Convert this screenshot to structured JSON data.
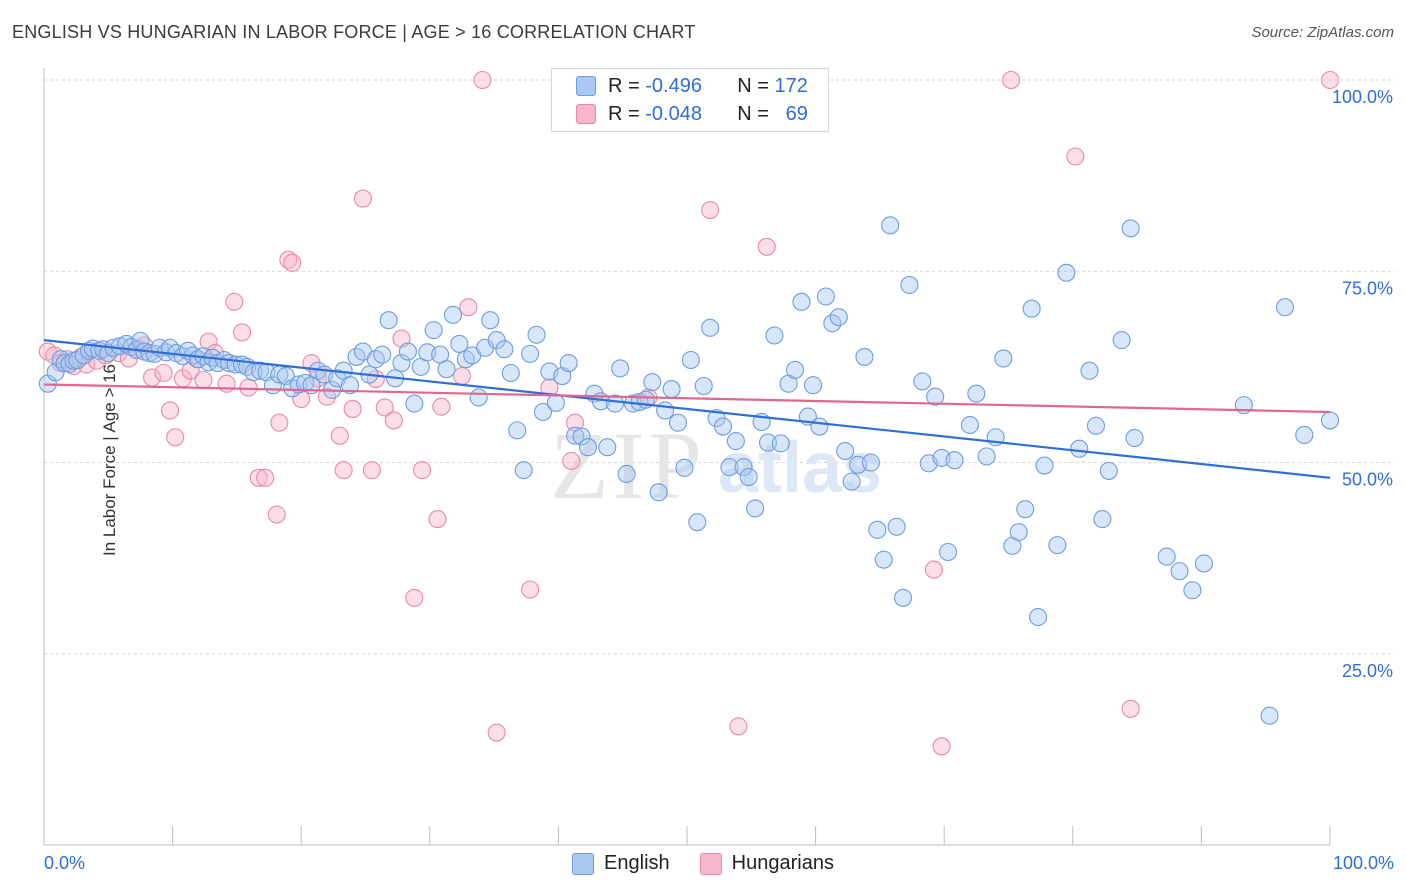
{
  "header": {
    "title": "ENGLISH VS HUNGARIAN IN LABOR FORCE | AGE > 16 CORRELATION CHART",
    "source": "Source: ZipAtlas.com"
  },
  "legend": {
    "rows": [
      {
        "r_label": "R =",
        "r_value": "-0.496",
        "n_label": "N =",
        "n_value": "172",
        "color": "#a9c8f2",
        "border": "#6f9de0"
      },
      {
        "r_label": "R =",
        "r_value": "-0.048",
        "n_label": "N =",
        "n_value": "69",
        "color": "#f7b6c9",
        "border": "#e98aa8"
      }
    ]
  },
  "bottom_legend": [
    "English",
    "Hungarians"
  ],
  "watermark": {
    "zip": "ZIP",
    "atlas": "atlas"
  },
  "chart_data": {
    "type": "scatter",
    "ylabel": "In Labor Force | Age > 16",
    "xlim": [
      0,
      100
    ],
    "ylim": [
      0,
      100
    ],
    "x_tick_labels": [
      "0.0%",
      "100.0%"
    ],
    "y_tick_labels": [
      {
        "v": 100,
        "label": "100.0%"
      },
      {
        "v": 75,
        "label": "75.0%"
      },
      {
        "v": 50,
        "label": "50.0%"
      },
      {
        "v": 25,
        "label": "25.0%"
      }
    ],
    "grid": true,
    "series": [
      {
        "name": "English",
        "color": "#6f9de0",
        "fill": "rgba(169,200,242,0.45)",
        "line_color": "#2f6fd6",
        "trend": {
          "x0": 0,
          "y0": 66.0,
          "x1": 100,
          "y1": 48.0
        },
        "points": [
          [
            0.3,
            60.3
          ],
          [
            0.9,
            61.8
          ],
          [
            1.3,
            63.5
          ],
          [
            1.6,
            63.0
          ],
          [
            2.0,
            62.9
          ],
          [
            2.3,
            63.3
          ],
          [
            2.6,
            63.4
          ],
          [
            3.1,
            64.0
          ],
          [
            3.5,
            64.6
          ],
          [
            3.8,
            64.9
          ],
          [
            4.3,
            64.6
          ],
          [
            4.6,
            64.8
          ],
          [
            5.0,
            64.3
          ],
          [
            5.4,
            65.0
          ],
          [
            5.9,
            65.2
          ],
          [
            6.4,
            65.5
          ],
          [
            6.8,
            65.1
          ],
          [
            7.2,
            64.7
          ],
          [
            7.5,
            65.9
          ],
          [
            7.8,
            64.5
          ],
          [
            8.2,
            64.3
          ],
          [
            8.6,
            64.2
          ],
          [
            9.0,
            65.0
          ],
          [
            9.5,
            64.4
          ],
          [
            9.8,
            65.0
          ],
          [
            10.3,
            64.3
          ],
          [
            10.8,
            63.9
          ],
          [
            11.2,
            64.6
          ],
          [
            11.6,
            64.0
          ],
          [
            12.0,
            63.5
          ],
          [
            12.4,
            63.9
          ],
          [
            12.8,
            63.1
          ],
          [
            13.1,
            63.7
          ],
          [
            13.5,
            63.0
          ],
          [
            14.0,
            63.4
          ],
          [
            14.4,
            63.0
          ],
          [
            14.9,
            62.8
          ],
          [
            15.4,
            62.8
          ],
          [
            15.8,
            62.5
          ],
          [
            16.3,
            61.8
          ],
          [
            16.8,
            62.0
          ],
          [
            17.3,
            61.8
          ],
          [
            17.8,
            60.1
          ],
          [
            18.3,
            61.5
          ],
          [
            18.8,
            61.3
          ],
          [
            19.3,
            59.7
          ],
          [
            19.8,
            60.2
          ],
          [
            20.3,
            60.4
          ],
          [
            20.8,
            60.1
          ],
          [
            21.3,
            62.0
          ],
          [
            21.8,
            61.5
          ],
          [
            22.4,
            59.5
          ],
          [
            22.8,
            61.0
          ],
          [
            23.3,
            62.0
          ],
          [
            23.8,
            60.1
          ],
          [
            24.3,
            63.8
          ],
          [
            24.8,
            64.5
          ],
          [
            25.3,
            61.5
          ],
          [
            25.8,
            63.5
          ],
          [
            26.3,
            64.1
          ],
          [
            26.8,
            68.6
          ],
          [
            27.3,
            61.0
          ],
          [
            27.8,
            63.0
          ],
          [
            28.3,
            64.5
          ],
          [
            28.8,
            57.7
          ],
          [
            29.3,
            62.5
          ],
          [
            29.8,
            64.4
          ],
          [
            30.3,
            67.3
          ],
          [
            30.8,
            64.1
          ],
          [
            31.3,
            62.2
          ],
          [
            31.8,
            69.3
          ],
          [
            32.3,
            65.5
          ],
          [
            32.8,
            63.5
          ],
          [
            33.3,
            64.0
          ],
          [
            33.8,
            58.5
          ],
          [
            34.3,
            65.0
          ],
          [
            34.7,
            68.6
          ],
          [
            35.2,
            66.0
          ],
          [
            35.8,
            64.8
          ],
          [
            36.3,
            61.7
          ],
          [
            36.8,
            54.2
          ],
          [
            37.3,
            49.0
          ],
          [
            37.8,
            64.2
          ],
          [
            38.3,
            66.7
          ],
          [
            38.8,
            56.6
          ],
          [
            39.3,
            61.9
          ],
          [
            39.8,
            57.8
          ],
          [
            40.3,
            61.3
          ],
          [
            40.8,
            63.0
          ],
          [
            41.3,
            53.5
          ],
          [
            41.8,
            53.4
          ],
          [
            42.3,
            52.0
          ],
          [
            42.8,
            59.0
          ],
          [
            43.3,
            58.0
          ],
          [
            43.8,
            52.0
          ],
          [
            44.4,
            57.7
          ],
          [
            44.8,
            62.3
          ],
          [
            45.3,
            48.5
          ],
          [
            45.8,
            57.7
          ],
          [
            46.3,
            57.9
          ],
          [
            46.8,
            58.2
          ],
          [
            47.3,
            60.5
          ],
          [
            47.8,
            46.1
          ],
          [
            48.3,
            56.8
          ],
          [
            48.8,
            59.6
          ],
          [
            49.3,
            55.2
          ],
          [
            49.8,
            49.3
          ],
          [
            50.3,
            63.4
          ],
          [
            50.8,
            42.2
          ],
          [
            51.3,
            60.0
          ],
          [
            51.8,
            67.6
          ],
          [
            52.3,
            55.8
          ],
          [
            52.8,
            54.7
          ],
          [
            53.3,
            49.4
          ],
          [
            53.8,
            52.8
          ],
          [
            54.4,
            49.4
          ],
          [
            54.8,
            48.1
          ],
          [
            55.3,
            44.0
          ],
          [
            55.8,
            55.3
          ],
          [
            56.3,
            52.6
          ],
          [
            56.8,
            66.6
          ],
          [
            57.3,
            52.5
          ],
          [
            57.9,
            60.3
          ],
          [
            58.4,
            62.1
          ],
          [
            58.9,
            71.0
          ],
          [
            59.4,
            56.0
          ],
          [
            59.8,
            60.1
          ],
          [
            60.3,
            54.7
          ],
          [
            60.8,
            71.7
          ],
          [
            61.3,
            68.2
          ],
          [
            61.8,
            69.0
          ],
          [
            62.3,
            51.5
          ],
          [
            62.8,
            47.5
          ],
          [
            63.3,
            49.7
          ],
          [
            63.8,
            63.8
          ],
          [
            64.3,
            50.0
          ],
          [
            64.8,
            41.2
          ],
          [
            65.3,
            37.3
          ],
          [
            65.8,
            81.0
          ],
          [
            66.3,
            41.6
          ],
          [
            66.8,
            32.3
          ],
          [
            67.3,
            73.2
          ],
          [
            68.3,
            60.6
          ],
          [
            68.8,
            49.9
          ],
          [
            69.3,
            58.6
          ],
          [
            69.8,
            50.6
          ],
          [
            70.3,
            38.3
          ],
          [
            70.8,
            50.3
          ],
          [
            72.0,
            54.9
          ],
          [
            72.5,
            59.0
          ],
          [
            73.3,
            50.8
          ],
          [
            74.0,
            53.3
          ],
          [
            74.6,
            63.6
          ],
          [
            75.3,
            39.1
          ],
          [
            75.8,
            40.9
          ],
          [
            76.3,
            43.9
          ],
          [
            76.8,
            70.1
          ],
          [
            77.3,
            29.8
          ],
          [
            77.8,
            49.6
          ],
          [
            78.8,
            39.2
          ],
          [
            79.5,
            74.8
          ],
          [
            80.5,
            51.8
          ],
          [
            81.3,
            62.0
          ],
          [
            81.8,
            54.8
          ],
          [
            82.3,
            42.6
          ],
          [
            82.8,
            48.9
          ],
          [
            83.8,
            66.0
          ],
          [
            84.5,
            80.6
          ],
          [
            84.8,
            53.2
          ],
          [
            87.3,
            37.7
          ],
          [
            88.3,
            35.8
          ],
          [
            89.3,
            33.3
          ],
          [
            90.2,
            36.8
          ],
          [
            93.3,
            57.5
          ],
          [
            95.3,
            16.9
          ],
          [
            96.5,
            70.3
          ],
          [
            98.0,
            53.6
          ],
          [
            100.0,
            55.5
          ]
        ]
      },
      {
        "name": "Hungarians",
        "color": "#e98aa8",
        "fill": "rgba(247,182,201,0.45)",
        "line_color": "#e0688e",
        "trend": {
          "x0": 0,
          "y0": 60.2,
          "x1": 100,
          "y1": 56.6
        },
        "points": [
          [
            0.3,
            64.5
          ],
          [
            0.8,
            64.0
          ],
          [
            1.3,
            63.0
          ],
          [
            1.8,
            63.5
          ],
          [
            2.3,
            62.6
          ],
          [
            2.8,
            63.7
          ],
          [
            3.3,
            62.8
          ],
          [
            4.1,
            63.3
          ],
          [
            4.8,
            64.0
          ],
          [
            5.8,
            64.3
          ],
          [
            6.6,
            63.6
          ],
          [
            7.3,
            64.9
          ],
          [
            7.8,
            65.3
          ],
          [
            8.4,
            61.1
          ],
          [
            9.3,
            61.7
          ],
          [
            9.8,
            56.8
          ],
          [
            10.2,
            53.3
          ],
          [
            10.8,
            61.0
          ],
          [
            11.4,
            62.0
          ],
          [
            11.9,
            63.5
          ],
          [
            12.4,
            60.8
          ],
          [
            12.8,
            65.8
          ],
          [
            13.3,
            64.3
          ],
          [
            14.2,
            60.3
          ],
          [
            14.8,
            71.0
          ],
          [
            15.4,
            67.0
          ],
          [
            15.9,
            59.8
          ],
          [
            16.7,
            48.0
          ],
          [
            17.2,
            48.0
          ],
          [
            18.1,
            43.2
          ],
          [
            18.3,
            55.2
          ],
          [
            19.0,
            76.5
          ],
          [
            19.3,
            76.1
          ],
          [
            20.0,
            58.3
          ],
          [
            20.8,
            63.0
          ],
          [
            21.3,
            61.0
          ],
          [
            22.0,
            58.6
          ],
          [
            23.0,
            53.5
          ],
          [
            23.3,
            49.0
          ],
          [
            24.0,
            57.0
          ],
          [
            24.8,
            84.5
          ],
          [
            25.5,
            49.0
          ],
          [
            25.8,
            60.9
          ],
          [
            26.5,
            57.2
          ],
          [
            27.2,
            55.5
          ],
          [
            27.8,
            66.2
          ],
          [
            28.8,
            32.3
          ],
          [
            29.4,
            49.0
          ],
          [
            30.6,
            42.6
          ],
          [
            30.9,
            57.3
          ],
          [
            32.5,
            61.3
          ],
          [
            33.0,
            70.3
          ],
          [
            34.1,
            100.0
          ],
          [
            35.2,
            14.7
          ],
          [
            37.8,
            33.4
          ],
          [
            39.3,
            59.8
          ],
          [
            41.0,
            50.2
          ],
          [
            41.3,
            55.2
          ],
          [
            47.0,
            58.5
          ],
          [
            51.8,
            83.0
          ],
          [
            54.0,
            15.5
          ],
          [
            56.2,
            78.2
          ],
          [
            69.2,
            36.0
          ],
          [
            69.8,
            12.9
          ],
          [
            75.2,
            100.0
          ],
          [
            80.2,
            90.0
          ],
          [
            84.5,
            17.8
          ],
          [
            100.0,
            100.0
          ]
        ]
      }
    ]
  }
}
